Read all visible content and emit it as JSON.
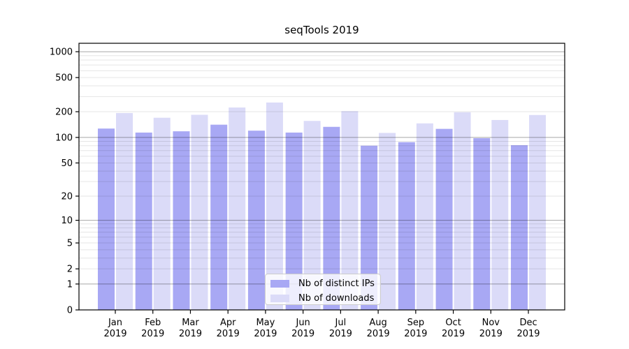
{
  "chart_data": {
    "type": "bar",
    "title": "seqTools 2019",
    "categories": [
      "Jan",
      "Feb",
      "Mar",
      "Apr",
      "May",
      "Jun",
      "Jul",
      "Aug",
      "Sep",
      "Oct",
      "Nov",
      "Dec"
    ],
    "year_label": "2019",
    "series": [
      {
        "name": "Nb of distinct IPs",
        "color": "#a8a8f4",
        "values": [
          127,
          114,
          118,
          141,
          120,
          114,
          133,
          80,
          88,
          126,
          98,
          81
        ]
      },
      {
        "name": "Nb of downloads",
        "color": "#dbdbf8",
        "values": [
          193,
          170,
          184,
          224,
          256,
          156,
          203,
          113,
          146,
          197,
          160,
          183
        ]
      }
    ],
    "xlabel": "",
    "ylabel": "",
    "yscale": "log1p",
    "ylim": [
      0,
      1253
    ],
    "yticks": [
      0,
      1,
      2,
      5,
      10,
      20,
      50,
      100,
      200,
      500,
      1000
    ],
    "grid": {
      "visible": true,
      "major_values": [
        1,
        10,
        100,
        1000
      ],
      "minor_decades": [
        1,
        10,
        100
      ]
    },
    "legend_position": "lower center inside"
  },
  "colors": {
    "background": "#ffffff",
    "axis": "#000000",
    "text": "#000000",
    "major_grid": "rgba(0,0,0,0.34)",
    "minor_grid": "rgba(0,0,0,0.10)",
    "legend_border": "#cccccc",
    "legend_bg": "rgba(255,255,255,0.8)"
  }
}
